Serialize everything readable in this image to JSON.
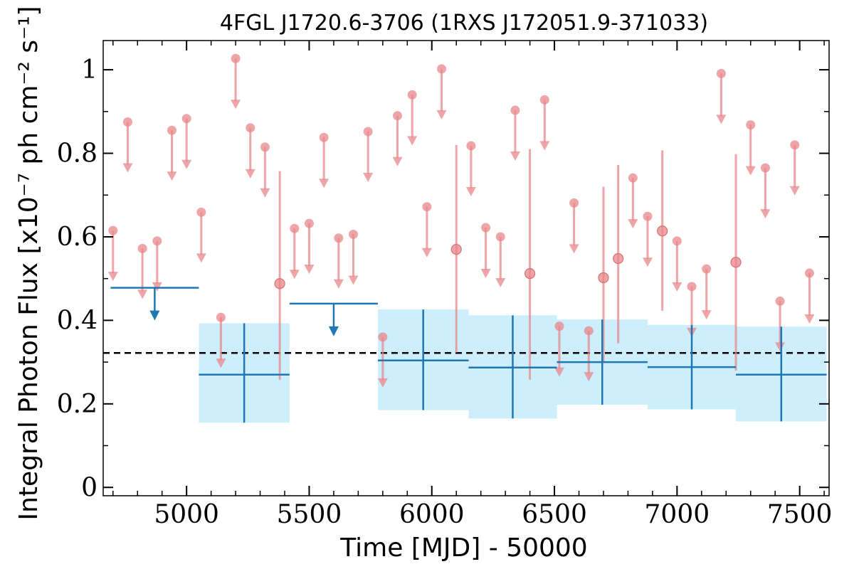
{
  "chart_data": {
    "type": "scatter",
    "title": "4FGL J1720.6-3706 (1RXS J172051.9-371033)",
    "xlabel": "Time [MJD] - 50000",
    "ylabel": "Integral Photon Flux [x10⁻⁷ ph cm⁻² s⁻¹]",
    "xlim": [
      4660,
      7620
    ],
    "ylim": [
      -0.02,
      1.07
    ],
    "xticks": [
      5000,
      5500,
      6000,
      6500,
      7000,
      7500
    ],
    "yticks": [
      0,
      0.2,
      0.4,
      0.6,
      0.8,
      1
    ],
    "ytick_labels": [
      "0",
      "0.2",
      "0.4",
      "0.6",
      "0.8",
      "1"
    ],
    "mean_flux": 0.322,
    "colors": {
      "short_bins": "#e8878b",
      "long_bins": "#1f77b4",
      "band": "#cdeefc",
      "mean_line": "#000000"
    },
    "short_bin_upper_limits": [
      {
        "t": 4700,
        "ul": 0.615
      },
      {
        "t": 4760,
        "ul": 0.875
      },
      {
        "t": 4820,
        "ul": 0.572
      },
      {
        "t": 4880,
        "ul": 0.59
      },
      {
        "t": 4940,
        "ul": 0.855
      },
      {
        "t": 5000,
        "ul": 0.883
      },
      {
        "t": 5060,
        "ul": 0.659
      },
      {
        "t": 5140,
        "ul": 0.407
      },
      {
        "t": 5200,
        "ul": 1.027
      },
      {
        "t": 5260,
        "ul": 0.861
      },
      {
        "t": 5320,
        "ul": 0.815
      },
      {
        "t": 5440,
        "ul": 0.62
      },
      {
        "t": 5500,
        "ul": 0.632
      },
      {
        "t": 5560,
        "ul": 0.838
      },
      {
        "t": 5620,
        "ul": 0.597
      },
      {
        "t": 5680,
        "ul": 0.606
      },
      {
        "t": 5740,
        "ul": 0.852
      },
      {
        "t": 5800,
        "ul": 0.36
      },
      {
        "t": 5860,
        "ul": 0.89
      },
      {
        "t": 5920,
        "ul": 0.94
      },
      {
        "t": 5980,
        "ul": 0.672
      },
      {
        "t": 6040,
        "ul": 1.002
      },
      {
        "t": 6160,
        "ul": 0.818
      },
      {
        "t": 6220,
        "ul": 0.622
      },
      {
        "t": 6280,
        "ul": 0.6
      },
      {
        "t": 6340,
        "ul": 0.903
      },
      {
        "t": 6460,
        "ul": 0.928
      },
      {
        "t": 6520,
        "ul": 0.386
      },
      {
        "t": 6580,
        "ul": 0.681
      },
      {
        "t": 6640,
        "ul": 0.375
      },
      {
        "t": 6820,
        "ul": 0.741
      },
      {
        "t": 6880,
        "ul": 0.649
      },
      {
        "t": 7000,
        "ul": 0.59
      },
      {
        "t": 7060,
        "ul": 0.481
      },
      {
        "t": 7120,
        "ul": 0.523
      },
      {
        "t": 7180,
        "ul": 0.991
      },
      {
        "t": 7300,
        "ul": 0.868
      },
      {
        "t": 7360,
        "ul": 0.765
      },
      {
        "t": 7420,
        "ul": 0.446
      },
      {
        "t": 7480,
        "ul": 0.82
      },
      {
        "t": 7540,
        "ul": 0.513
      }
    ],
    "short_bin_detections": [
      {
        "t": 5380,
        "flux": 0.488,
        "lo": 0.258,
        "hi": 0.757
      },
      {
        "t": 6100,
        "flux": 0.57,
        "lo": 0.323,
        "hi": 0.82
      },
      {
        "t": 6400,
        "flux": 0.512,
        "lo": 0.258,
        "hi": 0.81
      },
      {
        "t": 6700,
        "flux": 0.502,
        "lo": 0.3,
        "hi": 0.72
      },
      {
        "t": 6760,
        "flux": 0.548,
        "lo": 0.345,
        "hi": 0.772
      },
      {
        "t": 6940,
        "flux": 0.614,
        "lo": 0.423,
        "hi": 0.807
      },
      {
        "t": 7240,
        "flux": 0.539,
        "lo": 0.28,
        "hi": 0.798
      }
    ],
    "long_bin_upper_limits": [
      {
        "t0": 4690,
        "t1": 5050,
        "ul": 0.478
      },
      {
        "t0": 5420,
        "t1": 5780,
        "ul": 0.44
      }
    ],
    "long_bin_detections": [
      {
        "t0": 5050,
        "t1": 5420,
        "flux": 0.27,
        "lo": 0.155,
        "hi": 0.393
      },
      {
        "t0": 5780,
        "t1": 6150,
        "flux": 0.304,
        "lo": 0.185,
        "hi": 0.426
      },
      {
        "t0": 6150,
        "t1": 6510,
        "flux": 0.287,
        "lo": 0.165,
        "hi": 0.412
      },
      {
        "t0": 6510,
        "t1": 6880,
        "flux": 0.3,
        "lo": 0.198,
        "hi": 0.402
      },
      {
        "t0": 6880,
        "t1": 7240,
        "flux": 0.288,
        "lo": 0.187,
        "hi": 0.389
      },
      {
        "t0": 7240,
        "t1": 7610,
        "flux": 0.27,
        "lo": 0.158,
        "hi": 0.385
      }
    ]
  }
}
